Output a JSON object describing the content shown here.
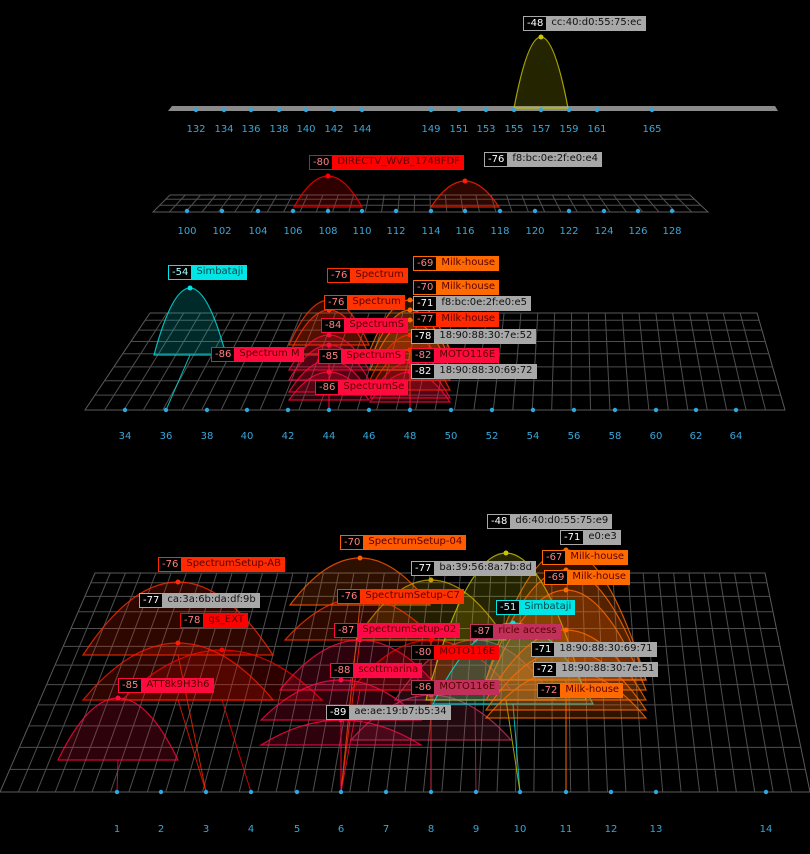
{
  "colors": {
    "tick": "#3aa6d8",
    "grid": "#6a6a6a",
    "background": "#000000"
  },
  "panels": [
    {
      "id": "band-5ghz-high",
      "channels": [
        132,
        134,
        136,
        138,
        140,
        142,
        144,
        149,
        151,
        153,
        155,
        157,
        159,
        161,
        165
      ],
      "networks": [
        {
          "rssi": "-48",
          "name": "cc:40:d0:55:75:ec",
          "channel": 157,
          "color": "#c8c800",
          "kind": "bssid"
        }
      ]
    },
    {
      "id": "band-5ghz-mid",
      "channels": [
        100,
        102,
        104,
        106,
        108,
        110,
        112,
        114,
        116,
        118,
        120,
        122,
        124,
        126,
        128
      ],
      "networks": [
        {
          "rssi": "-80",
          "name": "DIRECTV_WVB_174BFDF",
          "channel": 108,
          "color": "#ff0000",
          "kind": "ssid"
        },
        {
          "rssi": "-76",
          "name": "f8:bc:0e:2f:e0:e4",
          "channel": 116,
          "color": "#ff2000",
          "kind": "bssid"
        }
      ]
    },
    {
      "id": "band-5ghz-low",
      "channels": [
        34,
        36,
        38,
        40,
        42,
        44,
        46,
        48,
        50,
        52,
        54,
        56,
        58,
        60,
        62,
        64
      ],
      "networks": [
        {
          "rssi": "-54",
          "name": "Simbataji",
          "channel": 36,
          "color": "#00e5e5",
          "kind": "ssid"
        },
        {
          "rssi": "-76",
          "name": "Spectrum",
          "channel": 44,
          "color": "#ff3300",
          "kind": "ssid"
        },
        {
          "rssi": "-76",
          "name": "Spectrum",
          "channel": 44,
          "color": "#ff3300",
          "kind": "ssid"
        },
        {
          "rssi": "-84",
          "name": "SpectrumS",
          "channel": 44,
          "color": "#ff0a3c",
          "kind": "ssid"
        },
        {
          "rssi": "-85",
          "name": "SpectrumS",
          "channel": 44,
          "color": "#ff0a3c",
          "kind": "ssid"
        },
        {
          "rssi": "-86",
          "name": "SpectrumSe",
          "channel": 44,
          "color": "#ff0a3c",
          "kind": "ssid"
        },
        {
          "rssi": "-86",
          "name": "Spectrum M",
          "channel": 44,
          "color": "#ff0a3c",
          "kind": "ssid"
        },
        {
          "rssi": "-69",
          "name": "Milk-house",
          "channel": 48,
          "color": "#ff6a00",
          "kind": "ssid"
        },
        {
          "rssi": "-70",
          "name": "Milk-house",
          "channel": 48,
          "color": "#ff6a00",
          "kind": "ssid"
        },
        {
          "rssi": "-71",
          "name": "f8:bc:0e:2f:e0:e5",
          "channel": 48,
          "color": "#ff6a00",
          "kind": "bssid"
        },
        {
          "rssi": "-77",
          "name": "Milk-house",
          "channel": 48,
          "color": "#ff2a00",
          "kind": "ssid"
        },
        {
          "rssi": "-78",
          "name": "18:90:88:30:7e:52",
          "channel": 48,
          "color": "#ff2a00",
          "kind": "bssid"
        },
        {
          "rssi": "-82",
          "name": "MOTO116E",
          "channel": 48,
          "color": "#ff0a3c",
          "kind": "ssid"
        },
        {
          "rssi": "-82",
          "name": "18:90:88:30:69:72",
          "channel": 48,
          "color": "#ff0a3c",
          "kind": "bssid"
        }
      ]
    },
    {
      "id": "band-2ghz",
      "channels": [
        1,
        2,
        3,
        4,
        5,
        6,
        7,
        8,
        9,
        10,
        11,
        12,
        13,
        14
      ],
      "networks": [
        {
          "rssi": "-76",
          "name": "SpectrumSetup-AB",
          "channel": 3,
          "color": "#ff2a00",
          "kind": "ssid"
        },
        {
          "rssi": "-78",
          "name": "gs_EXT",
          "channel": 4,
          "color": "#ff0000",
          "kind": "ssid"
        },
        {
          "rssi": "-77",
          "name": "ca:3a:6b:da:df:9b",
          "channel": 3,
          "color": "#ff1a00",
          "kind": "bssid"
        },
        {
          "rssi": "-85",
          "name": "ATT8k9H3h6",
          "channel": 1,
          "color": "#ff0a3c",
          "kind": "ssid"
        },
        {
          "rssi": "-70",
          "name": "SpectrumSetup-04",
          "channel": 6,
          "color": "#ff5a00",
          "kind": "ssid"
        },
        {
          "rssi": "-77",
          "name": "ba:39:56:8a:7b:8d",
          "channel": 8,
          "color": "#c8a000",
          "kind": "bssid"
        },
        {
          "rssi": "-76",
          "name": "SpectrumSetup-C7",
          "channel": 6,
          "color": "#ff3300",
          "kind": "ssid"
        },
        {
          "rssi": "-87",
          "name": "SpectrumSetup-02",
          "channel": 6,
          "color": "#ff0a46",
          "kind": "ssid"
        },
        {
          "rssi": "-80",
          "name": "MOTO116E",
          "channel": 8,
          "color": "#ff0000",
          "kind": "ssid"
        },
        {
          "rssi": "-87",
          "name": "ricle access",
          "channel": 9,
          "color": "#c0305a",
          "kind": "ssid"
        },
        {
          "rssi": "-88",
          "name": "scottmarina",
          "channel": 6,
          "color": "#ff0a46",
          "kind": "ssid"
        },
        {
          "rssi": "-86",
          "name": "MOTO116E",
          "channel": 8,
          "color": "#c0305a",
          "kind": "ssid"
        },
        {
          "rssi": "-89",
          "name": "ae:ae:19:b7:b5:34",
          "channel": 6,
          "color": "#ff0a46",
          "kind": "bssid"
        },
        {
          "rssi": "-71",
          "name": "e0:e3",
          "channel": 11,
          "color": "#ff6a00",
          "kind": "bssid"
        },
        {
          "rssi": "-48",
          "name": "d6:40:d0:55:75:e9",
          "channel": 10,
          "color": "#c8c800",
          "kind": "bssid"
        },
        {
          "rssi": "-67",
          "name": "Milk-house",
          "channel": 11,
          "color": "#ff6a00",
          "kind": "ssid"
        },
        {
          "rssi": "-69",
          "name": "Milk-house",
          "channel": 11,
          "color": "#ff6a00",
          "kind": "ssid"
        },
        {
          "rssi": "-51",
          "name": "Simbataji",
          "channel": 10,
          "color": "#00e5e5",
          "kind": "ssid"
        },
        {
          "rssi": "-71",
          "name": "18:90:88:30:69:71",
          "channel": 11,
          "color": "#ff6a00",
          "kind": "bssid"
        },
        {
          "rssi": "-72",
          "name": "18:90:88:30:7e:51",
          "channel": 11,
          "color": "#ff6a00",
          "kind": "bssid"
        },
        {
          "rssi": "-72",
          "name": "Milk-house",
          "channel": 11,
          "color": "#ff6a00",
          "kind": "ssid"
        }
      ]
    }
  ]
}
